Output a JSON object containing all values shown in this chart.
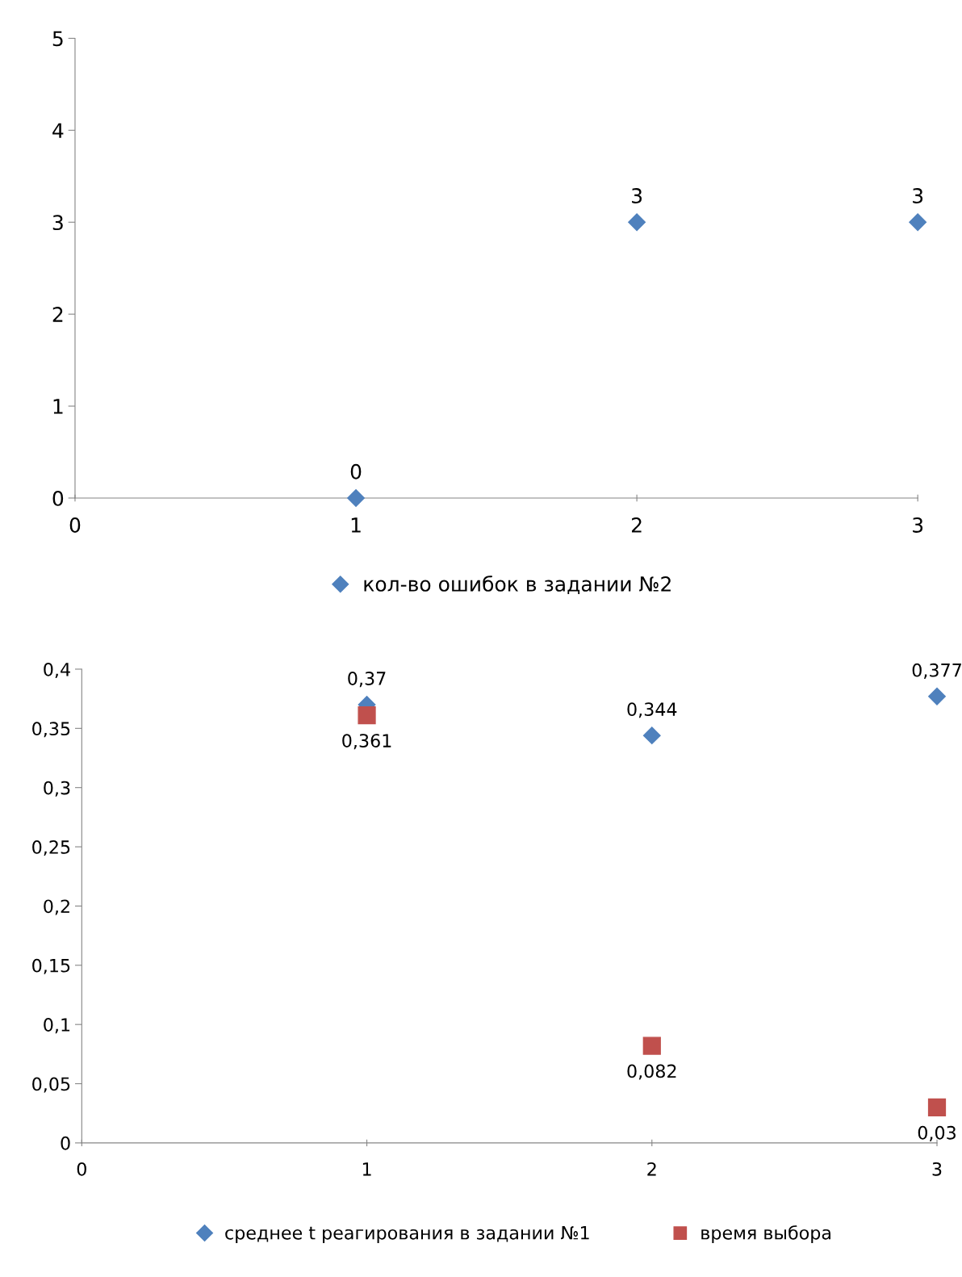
{
  "chart_data": [
    {
      "type": "scatter",
      "x": [
        1,
        2,
        3
      ],
      "xlim": [
        0,
        3
      ],
      "xticks": [
        0,
        1,
        2,
        3
      ],
      "ylim": [
        0,
        5
      ],
      "yticks": [
        0,
        1,
        2,
        3,
        4,
        5
      ],
      "grid": false,
      "legend": "bottom",
      "series": [
        {
          "name": "кол-во ошибок в задании №2",
          "color": "#4f81bd",
          "marker": "diamond",
          "values": [
            0,
            3,
            3
          ],
          "value_labels": [
            "0",
            "3",
            "3"
          ]
        }
      ]
    },
    {
      "type": "scatter",
      "x": [
        1,
        2,
        3
      ],
      "xlim": [
        0,
        3
      ],
      "xticks": [
        0,
        1,
        2,
        3
      ],
      "ylim": [
        0,
        0.4
      ],
      "yticks": [
        0,
        {
          "value": 0.05,
          "label": "0,05"
        },
        {
          "value": 0.1,
          "label": "0,1"
        },
        {
          "value": 0.15,
          "label": "0,15"
        },
        {
          "value": 0.2,
          "label": "0,2"
        },
        {
          "value": 0.25,
          "label": "0,25"
        },
        {
          "value": 0.3,
          "label": "0,3"
        },
        {
          "value": 0.35,
          "label": "0,35"
        },
        {
          "value": 0.4,
          "label": "0,4"
        }
      ],
      "grid": false,
      "legend": "bottom",
      "series": [
        {
          "name": "среднее t реагирования в задании №1",
          "color": "#4f81bd",
          "marker": "diamond",
          "values": [
            0.37,
            0.344,
            0.377
          ],
          "value_labels": [
            "0,37",
            "0,344",
            "0,377"
          ]
        },
        {
          "name": "время выбора",
          "color": "#c0504d",
          "marker": "square",
          "values": [
            0.361,
            0.082,
            0.03
          ],
          "value_labels": [
            "0,361",
            "0,082",
            "0,03"
          ]
        }
      ]
    }
  ]
}
